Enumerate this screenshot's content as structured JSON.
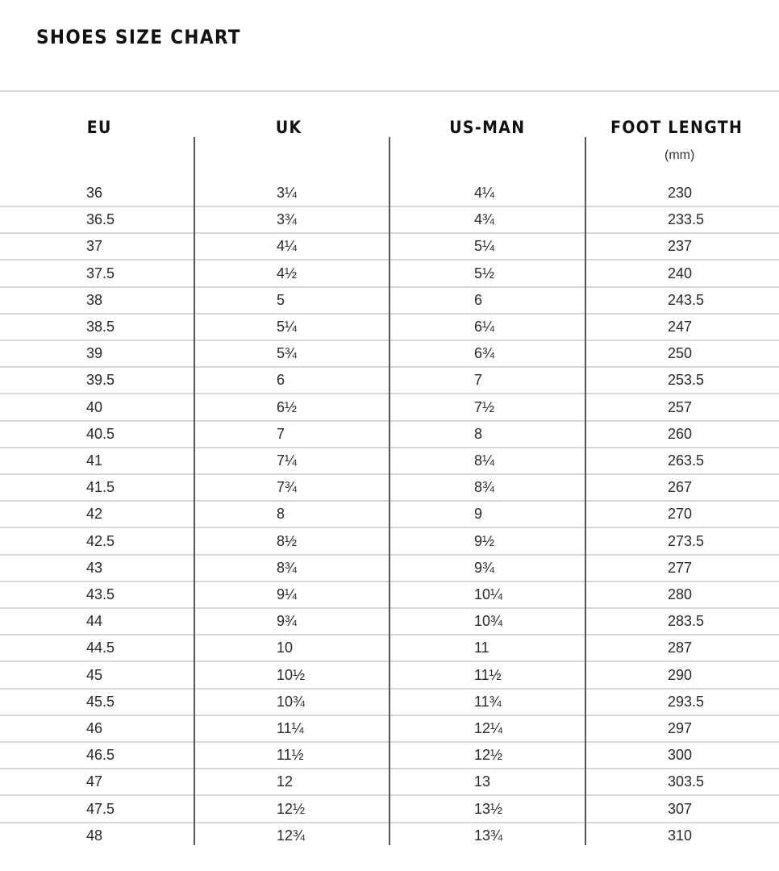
{
  "title": "SHOES SIZE CHART",
  "headers": {
    "eu": "EU",
    "uk": "UK",
    "us": "US-MAN",
    "foot": "FOOT LENGTH",
    "foot_unit": "(mm)"
  },
  "rows": [
    {
      "eu": "36",
      "uk": "3¼",
      "us": "4¼",
      "foot": "230"
    },
    {
      "eu": "36.5",
      "uk": "3¾",
      "us": "4¾",
      "foot": "233.5"
    },
    {
      "eu": "37",
      "uk": "4¼",
      "us": "5¼",
      "foot": "237"
    },
    {
      "eu": "37.5",
      "uk": "4½",
      "us": "5½",
      "foot": "240"
    },
    {
      "eu": "38",
      "uk": "5",
      "us": "6",
      "foot": "243.5"
    },
    {
      "eu": "38.5",
      "uk": "5¼",
      "us": "6¼",
      "foot": "247"
    },
    {
      "eu": "39",
      "uk": "5¾",
      "us": "6¾",
      "foot": "250"
    },
    {
      "eu": "39.5",
      "uk": "6",
      "us": "7",
      "foot": "253.5"
    },
    {
      "eu": "40",
      "uk": "6½",
      "us": "7½",
      "foot": "257"
    },
    {
      "eu": "40.5",
      "uk": "7",
      "us": "8",
      "foot": "260"
    },
    {
      "eu": "41",
      "uk": "7¼",
      "us": "8¼",
      "foot": "263.5"
    },
    {
      "eu": "41.5",
      "uk": "7¾",
      "us": "8¾",
      "foot": "267"
    },
    {
      "eu": "42",
      "uk": "8",
      "us": "9",
      "foot": "270"
    },
    {
      "eu": "42.5",
      "uk": "8½",
      "us": "9½",
      "foot": "273.5"
    },
    {
      "eu": "43",
      "uk": "8¾",
      "us": "9¾",
      "foot": "277"
    },
    {
      "eu": "43.5",
      "uk": "9¼",
      "us": "10¼",
      "foot": "280"
    },
    {
      "eu": "44",
      "uk": "9¾",
      "us": "10¾",
      "foot": "283.5"
    },
    {
      "eu": "44.5",
      "uk": "10",
      "us": "11",
      "foot": "287"
    },
    {
      "eu": "45",
      "uk": "10½",
      "us": "11½",
      "foot": "290"
    },
    {
      "eu": "45.5",
      "uk": "10¾",
      "us": "11¾",
      "foot": "293.5"
    },
    {
      "eu": "46",
      "uk": "11¼",
      "us": "12¼",
      "foot": "297"
    },
    {
      "eu": "46.5",
      "uk": "11½",
      "us": "12½",
      "foot": "300"
    },
    {
      "eu": "47",
      "uk": "12",
      "us": "13",
      "foot": "303.5"
    },
    {
      "eu": "47.5",
      "uk": "12½",
      "us": "13½",
      "foot": "307"
    },
    {
      "eu": "48",
      "uk": "12¾",
      "us": "13¾",
      "foot": "310"
    }
  ]
}
